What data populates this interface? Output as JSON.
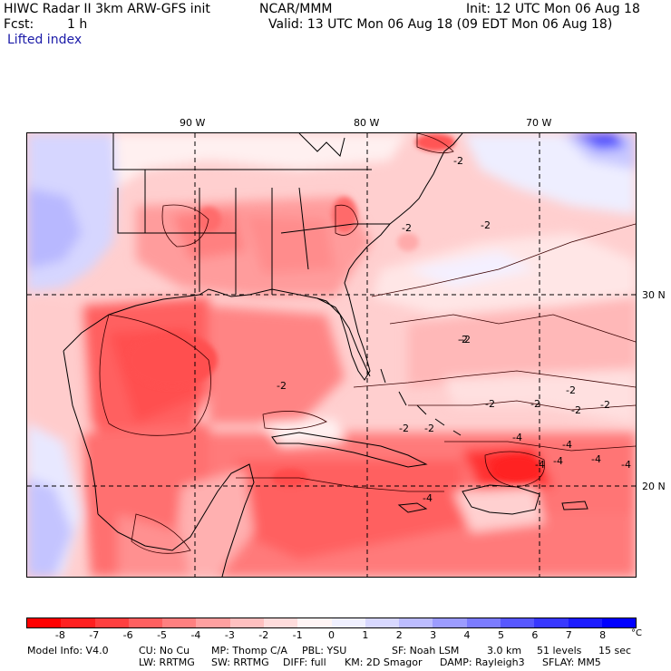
{
  "header": {
    "title": "HIWC Radar II 3km ARW-GFS init",
    "institution": "NCAR/MMM",
    "init": "Init: 12 UTC Mon 06 Aug 18",
    "fcst_label": "Fcst:",
    "fcst_value": "1 h",
    "valid": "Valid: 13 UTC Mon 06 Aug 18 (09 EDT Mon 06 Aug 18)",
    "field": "Lifted index"
  },
  "map": {
    "lon_labels": [
      "90 W",
      "80 W",
      "70 W"
    ],
    "lat_labels": [
      "30 N",
      "20 N"
    ],
    "contour_labels": [
      "-2",
      "-2",
      "-2",
      "-2",
      "-2",
      "-2",
      "-2",
      "-2",
      "-2",
      "-2",
      "-2",
      "-2",
      "-4",
      "-4",
      "-4",
      "-4",
      "-4",
      "-4",
      "-2",
      "-4"
    ]
  },
  "colorbar": {
    "colors": [
      "#ff0000",
      "#ff2020",
      "#ff4040",
      "#ff6060",
      "#ff8080",
      "#ffa0a0",
      "#ffc0c0",
      "#ffdcdc",
      "#fff4f4",
      "#f0f0ff",
      "#d8d8ff",
      "#bcbcff",
      "#9c9cff",
      "#7c7cff",
      "#5858ff",
      "#3838ff",
      "#1c1cff",
      "#0000ff"
    ],
    "ticks": [
      "-8",
      "-7",
      "-6",
      "-5",
      "-4",
      "-3",
      "-2",
      "-1",
      "0",
      "1",
      "2",
      "3",
      "4",
      "5",
      "6",
      "7",
      "8"
    ],
    "unit": "°C"
  },
  "footer": {
    "line1": [
      "Model Info: V4.0",
      "CU: No Cu",
      "MP: Thomp C/A",
      "PBL: YSU",
      "SF: Noah LSM",
      "3.0 km",
      "51 levels",
      "15 sec"
    ],
    "line2": [
      "LW: RRTMG",
      "SW: RRTMG",
      "DIFF: full",
      "KM: 2D Smagor",
      "DAMP: Rayleigh3",
      "SFLAY: MM5"
    ]
  }
}
